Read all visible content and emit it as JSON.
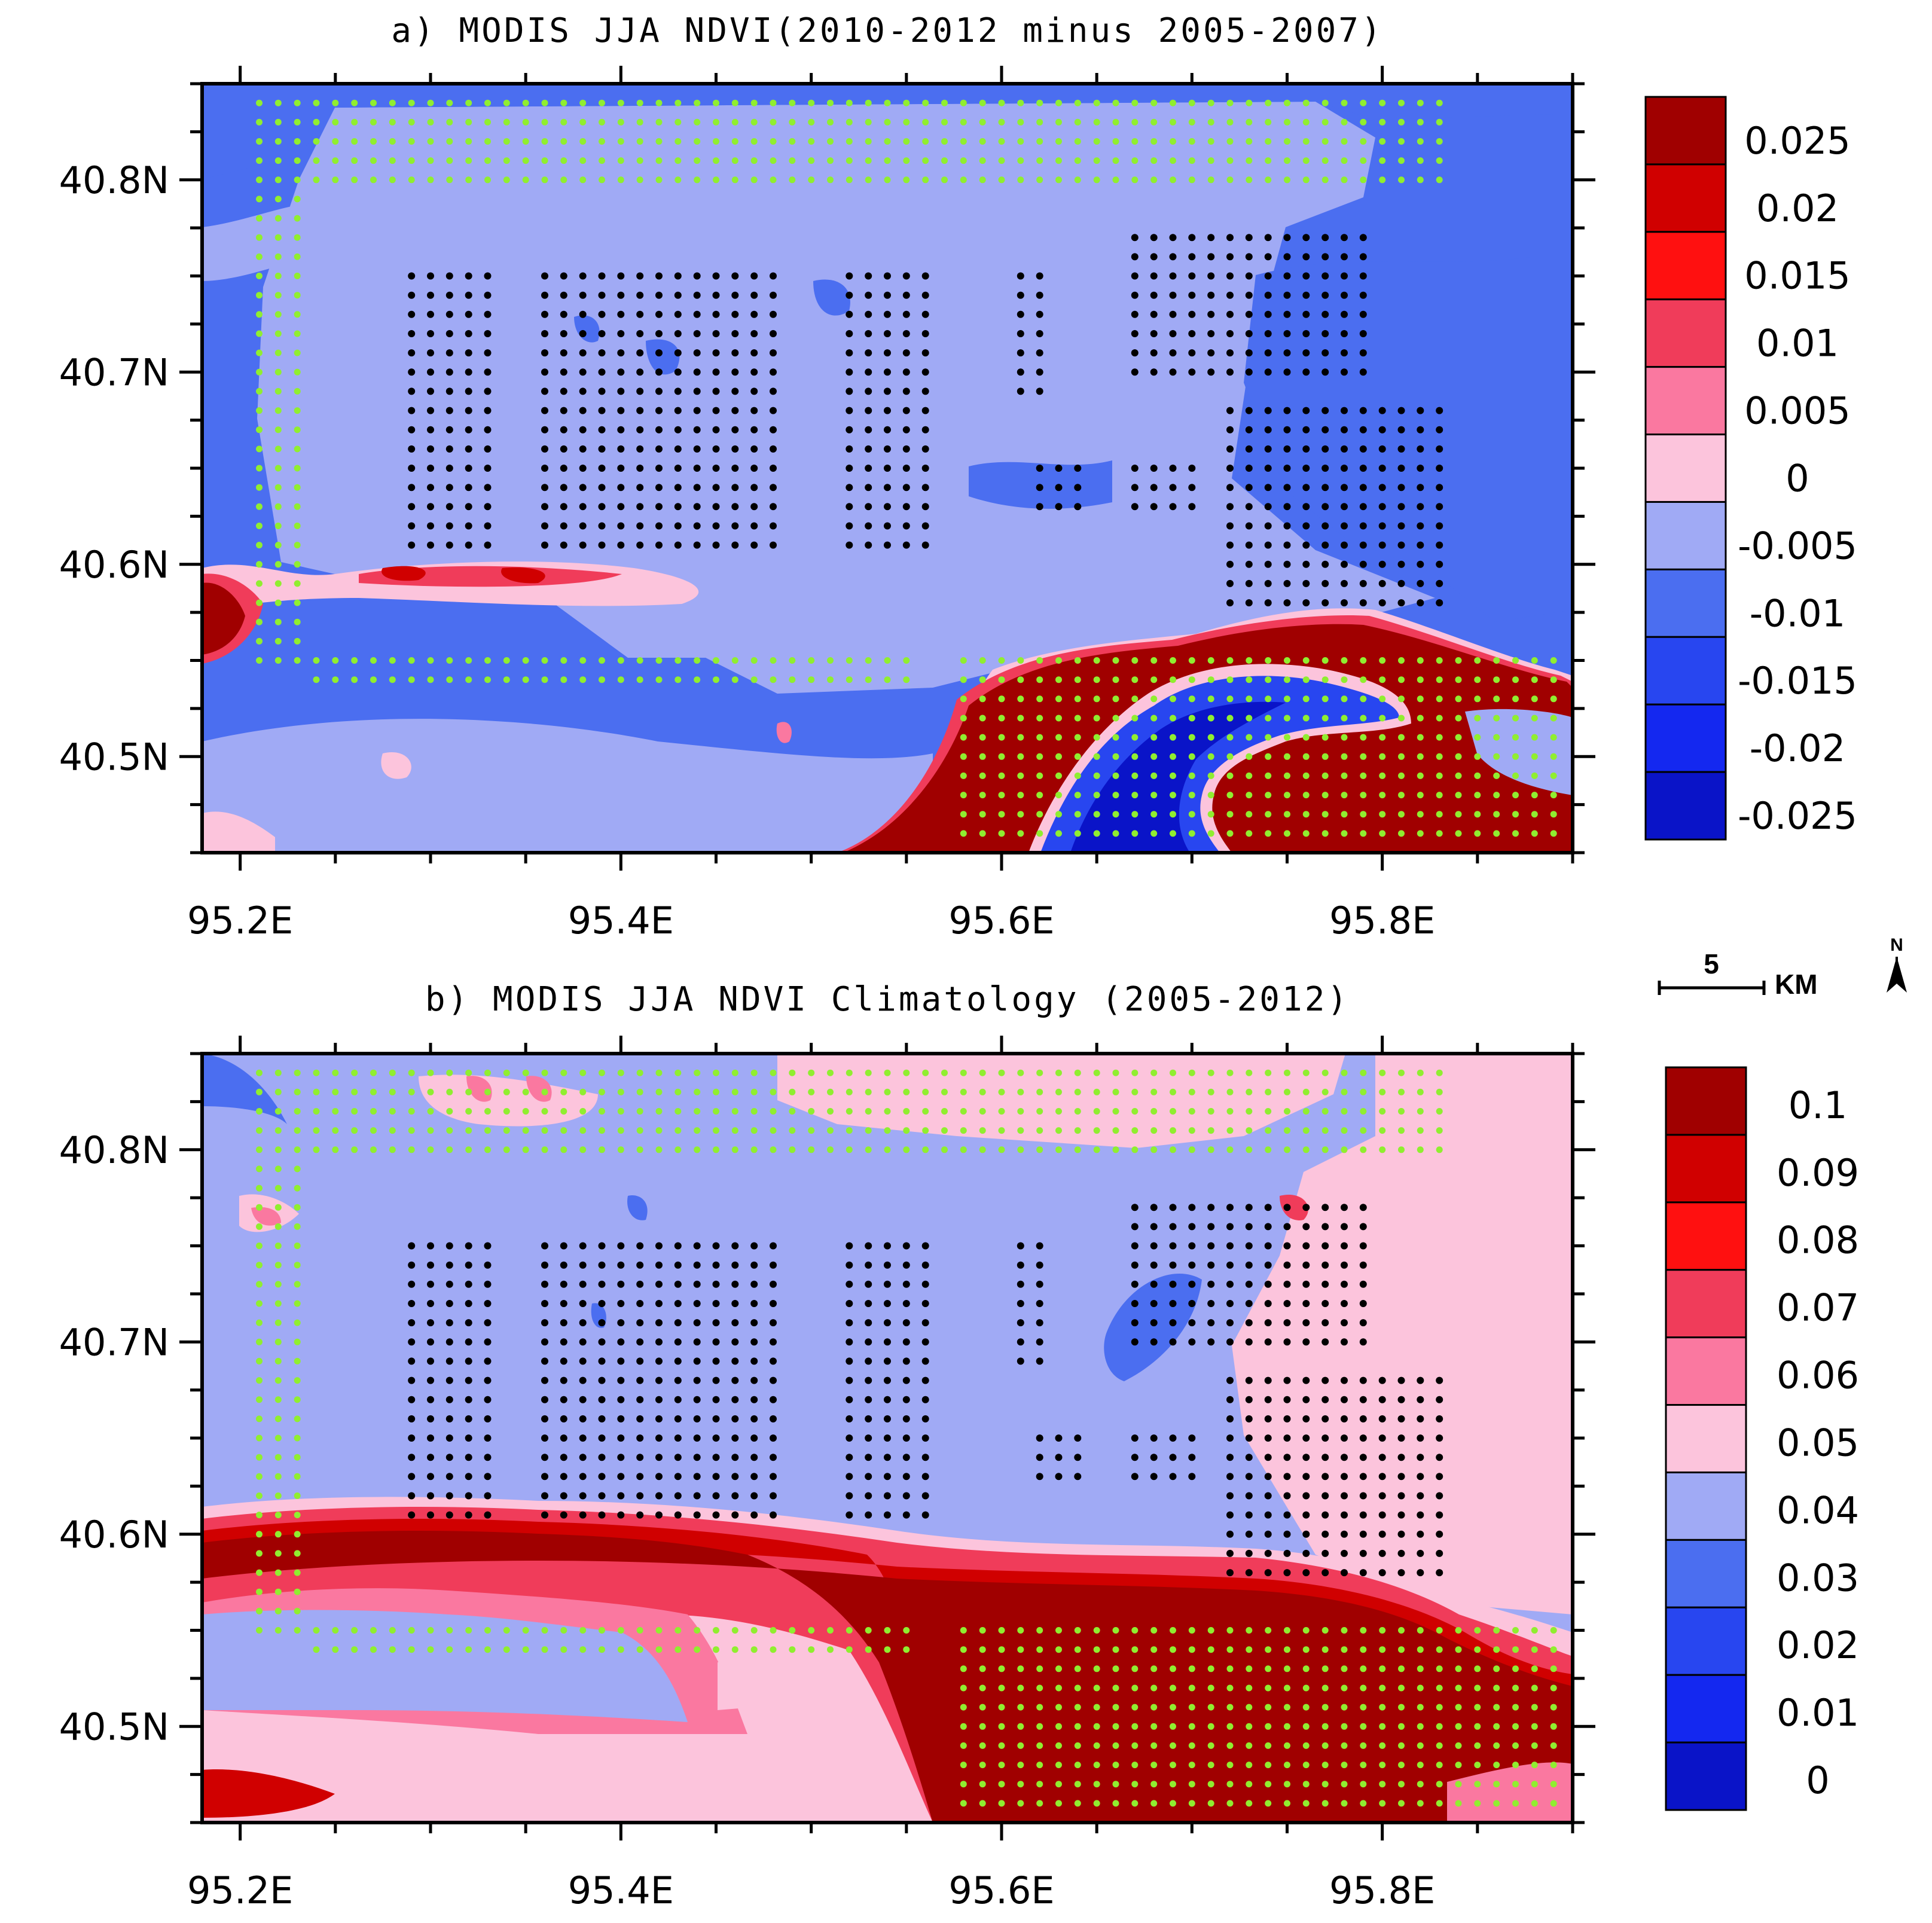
{
  "chart_data": [
    {
      "type": "heatmap",
      "title": "a) MODIS JJA NDVI(2010-2012 minus 2005-2007)",
      "x_ticks": [
        "95.2E",
        "95.4E",
        "95.6E",
        "95.8E"
      ],
      "x_tick_values": [
        95.2,
        95.4,
        95.6,
        95.8
      ],
      "y_ticks": [
        "40.8N",
        "40.7N",
        "40.6N",
        "40.5N"
      ],
      "y_tick_values": [
        40.8,
        40.7,
        40.6,
        40.5
      ],
      "xlim": [
        95.18,
        95.9
      ],
      "ylim": [
        40.45,
        40.85
      ],
      "colorbar_labels": [
        "0.025",
        "0.02",
        "0.015",
        "0.01",
        "0.005",
        "0",
        "-0.005",
        "-0.01",
        "-0.015",
        "-0.02",
        "-0.025"
      ],
      "colorbar_colors": [
        "#a00000",
        "#d00000",
        "#ff1010",
        "#f03c5a",
        "#fa78a0",
        "#fcc4dc",
        "#a0aaf5",
        "#4b6ef0",
        "#2846f0",
        "#1428f0",
        "#0a14c8"
      ],
      "series": [
        {
          "name": "green-dots",
          "color": "#90ee30"
        },
        {
          "name": "black-dots",
          "color": "#000000"
        }
      ]
    },
    {
      "type": "heatmap",
      "title": "b) MODIS JJA NDVI Climatology (2005-2012)",
      "x_ticks": [
        "95.2E",
        "95.4E",
        "95.6E",
        "95.8E"
      ],
      "x_tick_values": [
        95.2,
        95.4,
        95.6,
        95.8
      ],
      "y_ticks": [
        "40.8N",
        "40.7N",
        "40.6N",
        "40.5N"
      ],
      "y_tick_values": [
        40.8,
        40.7,
        40.6,
        40.5
      ],
      "xlim": [
        95.18,
        95.9
      ],
      "ylim": [
        40.45,
        40.85
      ],
      "colorbar_labels": [
        "0.1",
        "0.09",
        "0.08",
        "0.07",
        "0.06",
        "0.05",
        "0.04",
        "0.03",
        "0.02",
        "0.01",
        "0"
      ],
      "colorbar_colors": [
        "#a00000",
        "#d00000",
        "#ff1010",
        "#f03c5a",
        "#fa78a0",
        "#fcc4dc",
        "#a0aaf5",
        "#4b6ef0",
        "#2846f0",
        "#1428f0",
        "#0a14c8"
      ],
      "series": [
        {
          "name": "green-dots",
          "color": "#90ee30"
        },
        {
          "name": "black-dots",
          "color": "#000000"
        }
      ]
    }
  ],
  "scale_bar": {
    "value": "5",
    "unit": "KM"
  },
  "north_label": "N"
}
